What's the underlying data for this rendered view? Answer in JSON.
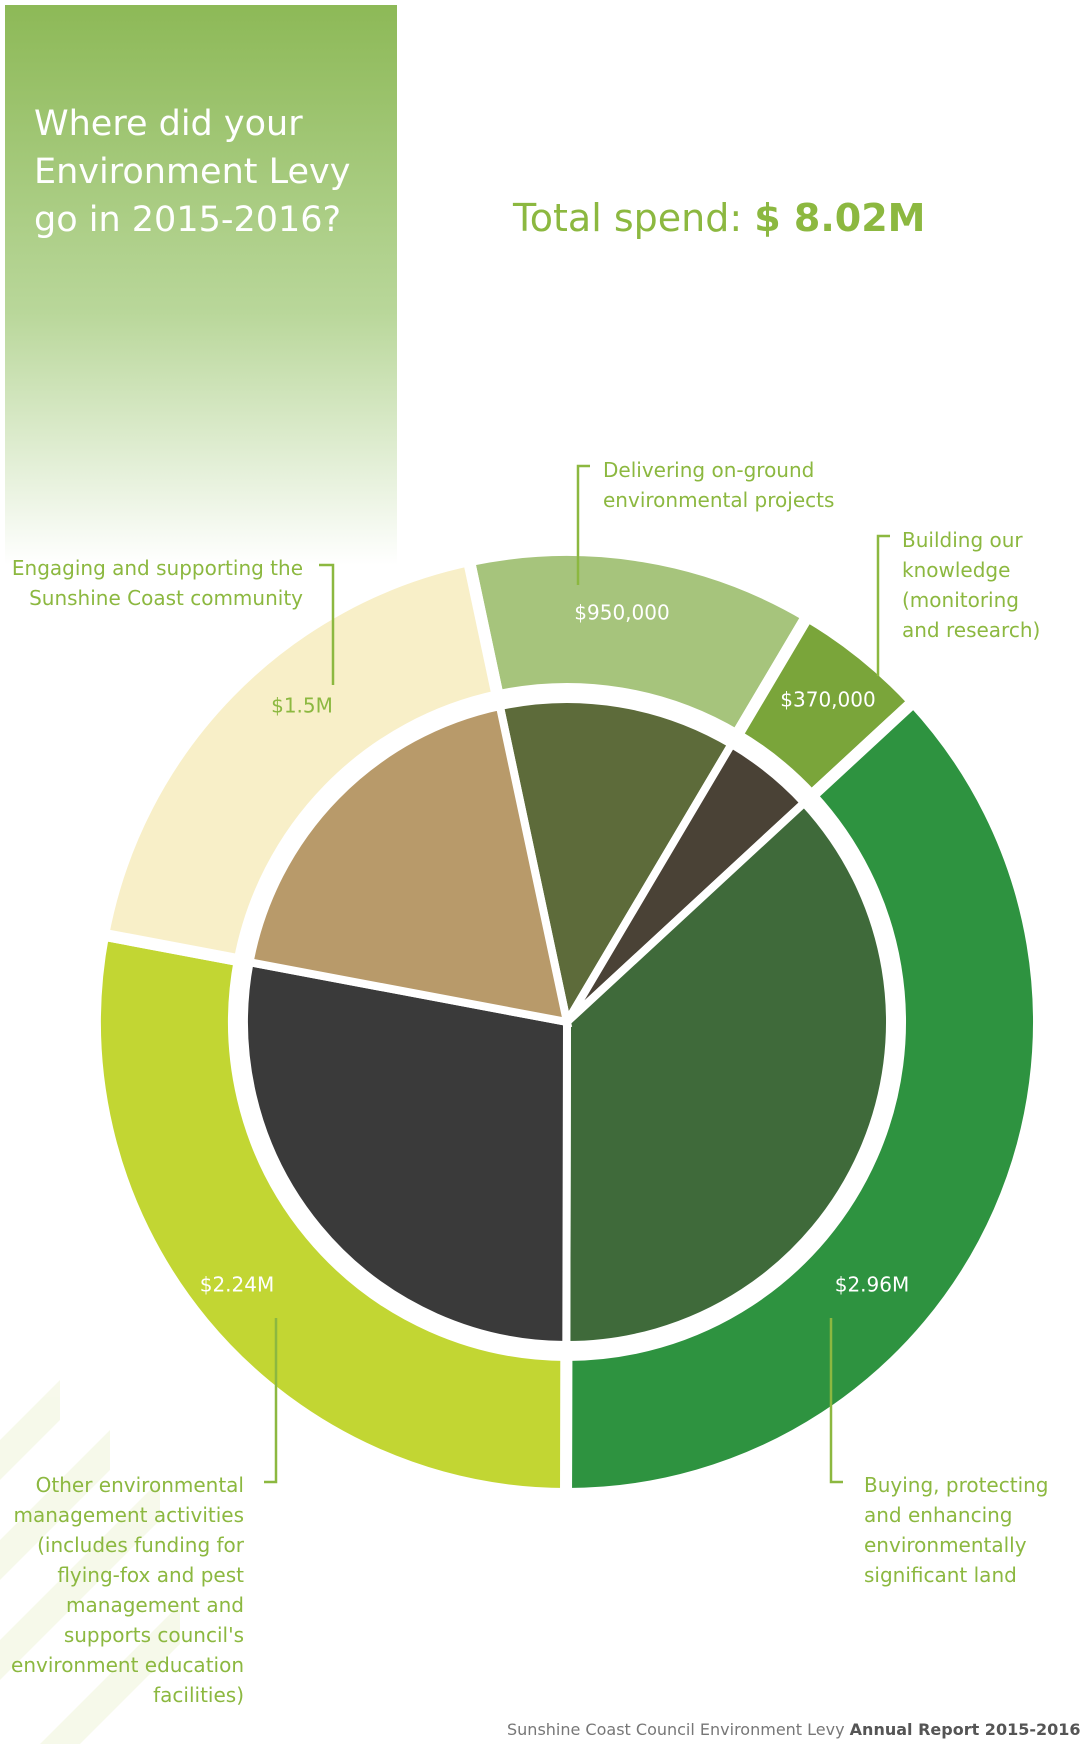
{
  "chart_data": {
    "type": "pie",
    "title": "Where did your Environment Levy go in 2015-2016?",
    "total_label": "Total spend:",
    "total_value": "$ 8.02M",
    "categories": [
      "Delivering on-ground environmental projects",
      "Building our knowledge (monitoring and research)",
      "Buying, protecting and enhancing environmentally significant land",
      "Other environmental management activities (includes funding for flying-fox and pest management and supports council's environment education facilities)",
      "Engaging and supporting the Sunshine Coast community"
    ],
    "values": [
      950000,
      370000,
      2960000,
      2240000,
      1500000
    ],
    "value_labels": [
      "$950,000",
      "$370,000",
      "$2.96M",
      "$2.24M",
      "$1.5M"
    ],
    "colors": [
      "#a6c47c",
      "#7aa53a",
      "#2e9340",
      "#c2d633",
      "#f8efc8"
    ],
    "footer": {
      "text": "Sunshine Coast Council Environment Levy",
      "bold": "Annual Report 2015-2016"
    }
  }
}
